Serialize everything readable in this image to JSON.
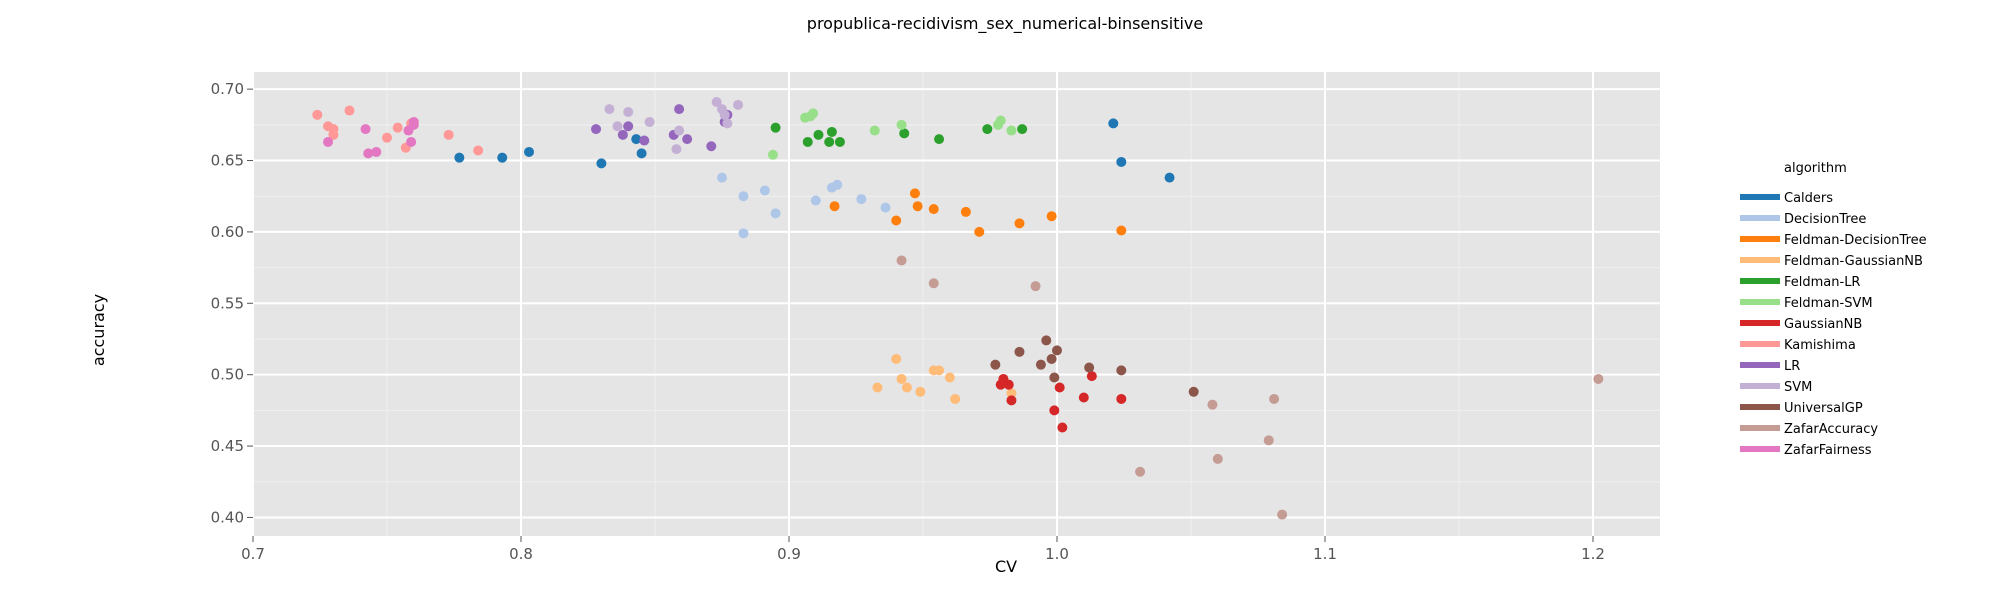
{
  "chart_data": {
    "type": "scatter",
    "title": "propublica-recidivism_sex_numerical-binsensitive",
    "xlabel": "CV",
    "ylabel": "accuracy",
    "xlim": [
      0.7,
      1.225
    ],
    "ylim": [
      0.387,
      0.712
    ],
    "xticks": [
      0.7,
      0.8,
      0.9,
      1.0,
      1.1,
      1.2
    ],
    "xtick_labels": [
      "0.7",
      "0.8",
      "0.9",
      "1.0",
      "1.1",
      "1.2"
    ],
    "yticks": [
      0.4,
      0.45,
      0.5,
      0.55,
      0.6,
      0.65,
      0.7
    ],
    "ytick_labels": [
      "0.40",
      "0.45",
      "0.50",
      "0.55",
      "0.60",
      "0.65",
      "0.70"
    ],
    "grid": true,
    "background": "#e5e5e5",
    "legend_title": "algorithm",
    "legend_position": "right",
    "series": [
      {
        "name": "Calders",
        "color": "#1f77b4",
        "points": [
          [
            0.777,
            0.652
          ],
          [
            0.793,
            0.652
          ],
          [
            0.803,
            0.656
          ],
          [
            0.83,
            0.648
          ],
          [
            0.843,
            0.665
          ],
          [
            0.845,
            0.655
          ],
          [
            1.021,
            0.676
          ],
          [
            1.024,
            0.649
          ],
          [
            1.042,
            0.638
          ]
        ]
      },
      {
        "name": "DecisionTree",
        "color": "#aec7e8",
        "points": [
          [
            0.875,
            0.638
          ],
          [
            0.883,
            0.625
          ],
          [
            0.883,
            0.599
          ],
          [
            0.891,
            0.629
          ],
          [
            0.895,
            0.613
          ],
          [
            0.91,
            0.622
          ],
          [
            0.916,
            0.631
          ],
          [
            0.918,
            0.633
          ],
          [
            0.927,
            0.623
          ],
          [
            0.936,
            0.617
          ]
        ]
      },
      {
        "name": "Feldman-DecisionTree",
        "color": "#ff7f0e",
        "points": [
          [
            0.917,
            0.618
          ],
          [
            0.94,
            0.608
          ],
          [
            0.947,
            0.627
          ],
          [
            0.948,
            0.618
          ],
          [
            0.954,
            0.616
          ],
          [
            0.966,
            0.614
          ],
          [
            0.971,
            0.6
          ],
          [
            0.986,
            0.606
          ],
          [
            0.998,
            0.611
          ],
          [
            1.024,
            0.601
          ]
        ]
      },
      {
        "name": "Feldman-GaussianNB",
        "color": "#ffbb78",
        "points": [
          [
            0.933,
            0.491
          ],
          [
            0.94,
            0.511
          ],
          [
            0.942,
            0.497
          ],
          [
            0.944,
            0.491
          ],
          [
            0.949,
            0.488
          ],
          [
            0.954,
            0.503
          ],
          [
            0.956,
            0.503
          ],
          [
            0.96,
            0.498
          ],
          [
            0.962,
            0.483
          ],
          [
            0.983,
            0.487
          ]
        ]
      },
      {
        "name": "Feldman-LR",
        "color": "#2ca02c",
        "points": [
          [
            0.895,
            0.673
          ],
          [
            0.907,
            0.663
          ],
          [
            0.911,
            0.668
          ],
          [
            0.915,
            0.663
          ],
          [
            0.916,
            0.67
          ],
          [
            0.919,
            0.663
          ],
          [
            0.943,
            0.669
          ],
          [
            0.956,
            0.665
          ],
          [
            0.974,
            0.672
          ],
          [
            0.987,
            0.672
          ]
        ]
      },
      {
        "name": "Feldman-SVM",
        "color": "#98df8a",
        "points": [
          [
            0.894,
            0.654
          ],
          [
            0.906,
            0.68
          ],
          [
            0.908,
            0.681
          ],
          [
            0.909,
            0.683
          ],
          [
            0.932,
            0.671
          ],
          [
            0.942,
            0.675
          ],
          [
            0.978,
            0.675
          ],
          [
            0.979,
            0.678
          ],
          [
            0.983,
            0.671
          ]
        ]
      },
      {
        "name": "GaussianNB",
        "color": "#d62728",
        "points": [
          [
            0.979,
            0.493
          ],
          [
            0.98,
            0.497
          ],
          [
            0.982,
            0.493
          ],
          [
            0.983,
            0.482
          ],
          [
            0.999,
            0.475
          ],
          [
            1.001,
            0.491
          ],
          [
            1.002,
            0.463
          ],
          [
            1.01,
            0.484
          ],
          [
            1.013,
            0.499
          ],
          [
            1.024,
            0.483
          ]
        ]
      },
      {
        "name": "Kamishima",
        "color": "#ff9896",
        "points": [
          [
            0.724,
            0.682
          ],
          [
            0.728,
            0.674
          ],
          [
            0.73,
            0.668
          ],
          [
            0.73,
            0.672
          ],
          [
            0.736,
            0.685
          ],
          [
            0.75,
            0.666
          ],
          [
            0.754,
            0.673
          ],
          [
            0.757,
            0.659
          ],
          [
            0.759,
            0.676
          ],
          [
            0.773,
            0.668
          ],
          [
            0.784,
            0.657
          ]
        ]
      },
      {
        "name": "LR",
        "color": "#9467bd",
        "points": [
          [
            0.828,
            0.672
          ],
          [
            0.838,
            0.668
          ],
          [
            0.84,
            0.674
          ],
          [
            0.846,
            0.664
          ],
          [
            0.857,
            0.668
          ],
          [
            0.859,
            0.686
          ],
          [
            0.862,
            0.665
          ],
          [
            0.871,
            0.66
          ],
          [
            0.876,
            0.677
          ],
          [
            0.877,
            0.682
          ]
        ]
      },
      {
        "name": "SVM",
        "color": "#c5b0d5",
        "points": [
          [
            0.833,
            0.686
          ],
          [
            0.836,
            0.674
          ],
          [
            0.84,
            0.684
          ],
          [
            0.848,
            0.677
          ],
          [
            0.858,
            0.658
          ],
          [
            0.859,
            0.671
          ],
          [
            0.873,
            0.691
          ],
          [
            0.875,
            0.686
          ],
          [
            0.876,
            0.682
          ],
          [
            0.877,
            0.676
          ],
          [
            0.881,
            0.689
          ]
        ]
      },
      {
        "name": "UniversalGP",
        "color": "#8c564b",
        "points": [
          [
            0.977,
            0.507
          ],
          [
            0.986,
            0.516
          ],
          [
            0.994,
            0.507
          ],
          [
            0.996,
            0.524
          ],
          [
            0.998,
            0.511
          ],
          [
            0.999,
            0.498
          ],
          [
            1.0,
            0.517
          ],
          [
            1.012,
            0.505
          ],
          [
            1.024,
            0.503
          ],
          [
            1.051,
            0.488
          ]
        ]
      },
      {
        "name": "ZafarAccuracy",
        "color": "#c49c94",
        "points": [
          [
            0.942,
            0.58
          ],
          [
            0.954,
            0.564
          ],
          [
            0.992,
            0.562
          ],
          [
            1.031,
            0.432
          ],
          [
            1.058,
            0.479
          ],
          [
            1.06,
            0.441
          ],
          [
            1.079,
            0.454
          ],
          [
            1.081,
            0.483
          ],
          [
            1.084,
            0.402
          ],
          [
            1.202,
            0.497
          ]
        ]
      },
      {
        "name": "ZafarFairness",
        "color": "#e377c2",
        "points": [
          [
            0.728,
            0.663
          ],
          [
            0.742,
            0.672
          ],
          [
            0.743,
            0.655
          ],
          [
            0.746,
            0.656
          ],
          [
            0.758,
            0.671
          ],
          [
            0.759,
            0.663
          ],
          [
            0.76,
            0.675
          ],
          [
            0.76,
            0.677
          ]
        ]
      }
    ]
  }
}
